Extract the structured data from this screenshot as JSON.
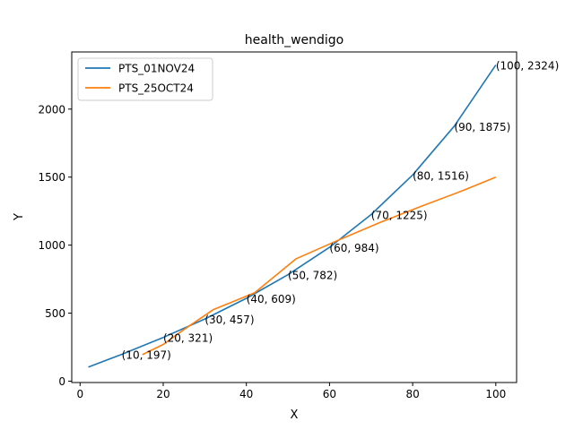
{
  "chart_data": {
    "type": "line",
    "title": "health_wendigo",
    "xlabel": "X",
    "ylabel": "Y",
    "xlim": [
      -2,
      105
    ],
    "ylim": [
      -10,
      2420
    ],
    "x_ticks": [
      0,
      20,
      40,
      60,
      80,
      100
    ],
    "y_ticks": [
      0,
      500,
      1000,
      1500,
      2000
    ],
    "grid": false,
    "legend_position": "top-left",
    "series": [
      {
        "name": "PTS_01NOV24",
        "color": "#1f77b4",
        "x": [
          2,
          10,
          20,
          30,
          40,
          50,
          60,
          70,
          80,
          90,
          100
        ],
        "y": [
          103,
          197,
          321,
          457,
          609,
          782,
          984,
          1225,
          1516,
          1875,
          2324
        ]
      },
      {
        "name": "PTS_25OCT24",
        "color": "#ff7f0e",
        "x": [
          15,
          20,
          25,
          32,
          42,
          52,
          62,
          72,
          82,
          92,
          100
        ],
        "y": [
          195,
          270,
          380,
          525,
          650,
          900,
          1035,
          1165,
          1285,
          1400,
          1500
        ]
      }
    ],
    "annotations": [
      {
        "text": "(10, 197)",
        "x": 10,
        "y": 197
      },
      {
        "text": "(20, 321)",
        "x": 20,
        "y": 321
      },
      {
        "text": "(30, 457)",
        "x": 30,
        "y": 457
      },
      {
        "text": "(40, 609)",
        "x": 40,
        "y": 609
      },
      {
        "text": "(50, 782)",
        "x": 50,
        "y": 782
      },
      {
        "text": "(60, 984)",
        "x": 60,
        "y": 984
      },
      {
        "text": "(70, 1225)",
        "x": 70,
        "y": 1225
      },
      {
        "text": "(80, 1516)",
        "x": 80,
        "y": 1516
      },
      {
        "text": "(90, 1875)",
        "x": 90,
        "y": 1875
      },
      {
        "text": "(100, 2324)",
        "x": 100,
        "y": 2324
      }
    ]
  }
}
